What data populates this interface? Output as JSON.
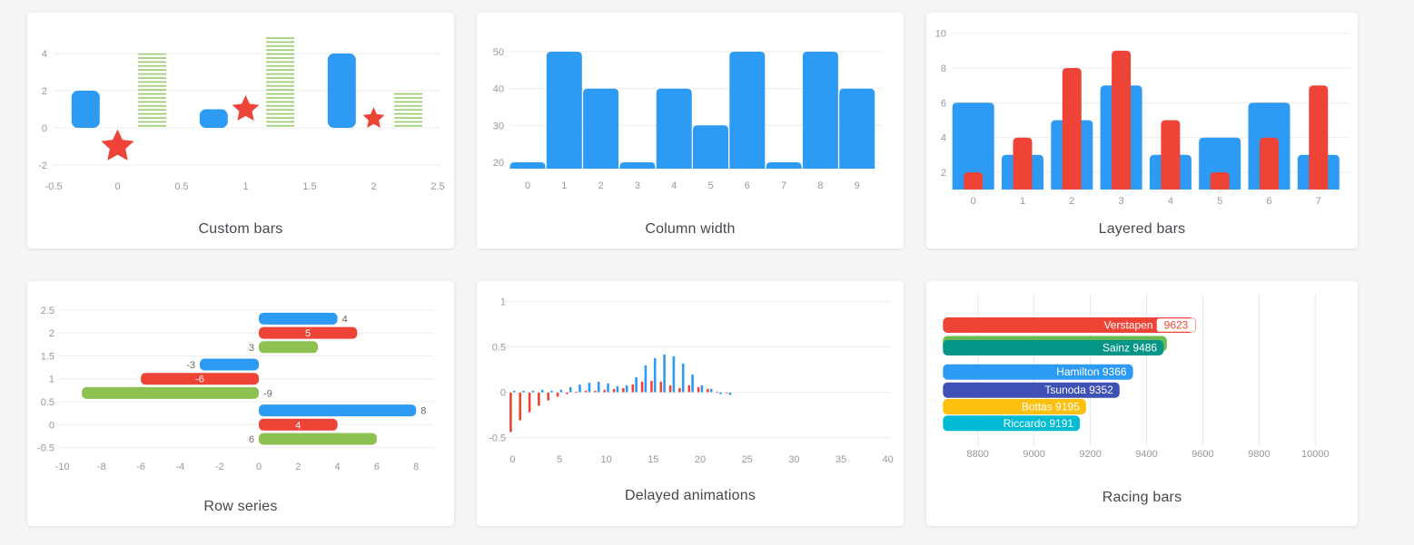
{
  "page": {
    "background": "#f4f5f7"
  },
  "chart_data": [
    {
      "id": "custom-bars",
      "type": "bar",
      "title": "Custom bars",
      "xticks": [
        -0.5,
        0,
        0.5,
        1,
        1.5,
        2,
        2.5
      ],
      "yticks": [
        -2,
        0,
        2,
        4
      ],
      "series": [
        {
          "name": "rounded blue bars",
          "shape": "solid",
          "color": "#2D9BF3",
          "x": [
            -0.25,
            0.75,
            1.75
          ],
          "values": [
            2,
            1,
            4
          ]
        },
        {
          "name": "hatched green bars",
          "shape": "hatched",
          "color": "#9CCB72",
          "x": [
            0.27,
            1.27,
            2.27
          ],
          "values": [
            4,
            5,
            2
          ]
        },
        {
          "name": "red stars",
          "shape": "star",
          "color": "#EE4437",
          "x": [
            0,
            1,
            2
          ],
          "values": [
            -1,
            1,
            0.5
          ],
          "sizes": [
            38,
            31,
            25
          ]
        }
      ]
    },
    {
      "id": "column-width",
      "type": "bar",
      "title": "Column width",
      "color": "#2D9BF3",
      "categories": [
        0,
        1,
        2,
        3,
        4,
        5,
        6,
        7,
        8,
        9
      ],
      "values": [
        20,
        50,
        40,
        20,
        40,
        30,
        50,
        20,
        50,
        40
      ],
      "yticks": [
        20,
        30,
        40,
        50
      ]
    },
    {
      "id": "layered-bars",
      "type": "bar",
      "title": "Layered bars",
      "categories": [
        0,
        1,
        2,
        3,
        4,
        5,
        6,
        7
      ],
      "yticks": [
        2,
        4,
        6,
        8,
        10
      ],
      "series": [
        {
          "name": "wide blue bars",
          "color": "#2D9BF3",
          "values": [
            6,
            3,
            5,
            7,
            3,
            4,
            6,
            3
          ]
        },
        {
          "name": "narrow red bars",
          "color": "#EE4437",
          "values": [
            2,
            4,
            8,
            9,
            5,
            2,
            4,
            7
          ]
        }
      ]
    },
    {
      "id": "row-series",
      "type": "bar",
      "orientation": "horizontal",
      "title": "Row series",
      "xticks": [
        -10,
        -8,
        -6,
        -4,
        -2,
        0,
        2,
        4,
        6,
        8
      ],
      "yticks": [
        -0.5,
        0,
        0.5,
        1,
        1.5,
        2,
        2.5
      ],
      "categories": [
        2,
        1,
        0
      ],
      "series": [
        {
          "name": "blue",
          "color": "#2D9BF3",
          "values": [
            4,
            -3,
            8
          ],
          "label_pos": "tip"
        },
        {
          "name": "red",
          "color": "#EE4437",
          "values": [
            5,
            -6,
            4
          ],
          "label_pos": "inside"
        },
        {
          "name": "green",
          "color": "#8DC152",
          "values": [
            3,
            -9,
            6
          ],
          "label_pos": "base"
        }
      ]
    },
    {
      "id": "delayed-animations",
      "type": "bar",
      "title": "Delayed animations",
      "xticks": [
        0,
        5,
        10,
        15,
        20,
        25,
        30,
        35,
        40
      ],
      "yticks": [
        -0.5,
        0,
        0.5,
        1
      ],
      "x": [
        0,
        1,
        2,
        3,
        4,
        5,
        6,
        7,
        8,
        9,
        10,
        11,
        12,
        13,
        14,
        15,
        16,
        17,
        18,
        19,
        20,
        21,
        22,
        23
      ],
      "series": [
        {
          "name": "red",
          "color": "#EE4437",
          "values": [
            -0.44,
            -0.31,
            -0.22,
            -0.15,
            -0.09,
            -0.05,
            -0.02,
            0.01,
            0.02,
            0.02,
            0.03,
            0.04,
            0.05,
            0.09,
            0.12,
            0.13,
            0.12,
            0.08,
            0.05,
            0.08,
            0.06,
            0.04,
            0.01,
            -0.01
          ]
        },
        {
          "name": "blue",
          "color": "#2D9BF3",
          "values": [
            0.02,
            0.02,
            0.02,
            0.03,
            0.02,
            0.03,
            0.06,
            0.09,
            0.11,
            0.12,
            0.1,
            0.07,
            0.08,
            0.17,
            0.3,
            0.38,
            0.42,
            0.4,
            0.32,
            0.2,
            0.08,
            0.04,
            -0.02,
            -0.03
          ]
        }
      ]
    },
    {
      "id": "racing-bars",
      "type": "bar",
      "orientation": "horizontal",
      "title": "Racing bars",
      "xticks": [
        8800,
        9000,
        9200,
        9400,
        9600,
        9800,
        10000
      ],
      "bars": [
        {
          "label": "Verstapen",
          "value": 9623,
          "bar_end": 9568,
          "color": "#EE4437",
          "value_badge": true,
          "badge_text_color": "#ED4A2E"
        },
        {
          "label": "Sainz",
          "value": 9486,
          "bar_end": 9460,
          "color": "#059688",
          "ghost": {
            "color": "#6CBB52",
            "bar_end": 9472
          }
        },
        {
          "label": "Hamilton",
          "value": 9366,
          "bar_end": 9352,
          "color": "#2D9BF3"
        },
        {
          "label": "Tsunoda",
          "value": 9352,
          "bar_end": 9304,
          "color": "#3F51B5"
        },
        {
          "label": "Bottas",
          "value": 9195,
          "bar_end": 9185,
          "color": "#FEC00F"
        },
        {
          "label": "Riccardo",
          "value": 9191,
          "bar_end": 9163,
          "color": "#01BCD4"
        }
      ]
    }
  ]
}
